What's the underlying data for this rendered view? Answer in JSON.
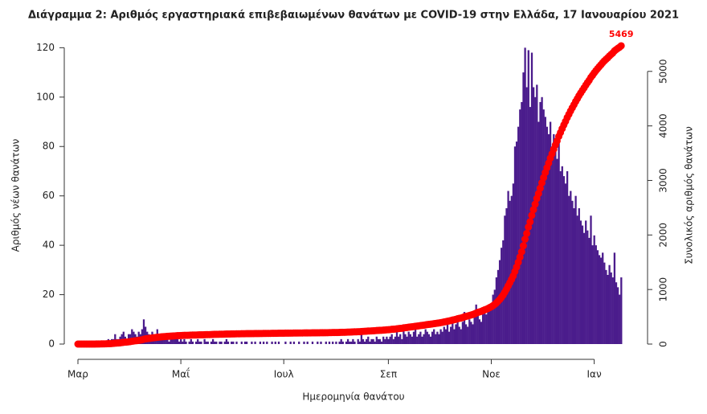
{
  "chart_data": {
    "type": "bar",
    "title": "Διάγραμμα 2: Αριθμός εργαστηριακά επιβεβαιωμένων θανάτων με COVID-19 στην Ελλάδα, 17 Ιανουαρίου 2021",
    "x_label": "Ημερομηνία θανάτου",
    "y_label": "Αριθμός νέων θανάτων",
    "y2_label": "Συνολικός αριθμός θανάτων",
    "categories": [
      "Μαρ",
      null,
      null,
      null,
      null,
      null,
      null,
      null,
      null,
      null,
      null,
      null,
      null,
      null,
      null,
      null,
      null,
      null,
      null,
      null,
      null,
      null,
      null,
      null,
      null,
      null,
      null,
      null,
      null,
      null,
      null,
      null,
      null,
      null,
      null,
      null,
      null,
      null,
      null,
      null,
      null,
      null,
      null,
      null,
      null,
      null,
      null,
      null,
      null,
      null,
      null,
      null,
      null,
      null,
      null,
      null,
      null,
      null,
      null,
      null,
      null,
      "Μαΐ",
      null,
      null,
      null,
      null,
      null,
      null,
      null,
      null,
      null,
      null,
      null,
      null,
      null,
      null,
      null,
      null,
      null,
      null,
      null,
      null,
      null,
      null,
      null,
      null,
      null,
      null,
      null,
      null,
      null,
      null,
      null,
      null,
      null,
      null,
      null,
      null,
      null,
      null,
      null,
      null,
      null,
      null,
      null,
      null,
      null,
      null,
      null,
      null,
      null,
      null,
      null,
      null,
      null,
      null,
      null,
      null,
      null,
      null,
      null,
      null,
      "Ιουλ",
      null,
      null,
      null,
      null,
      null,
      null,
      null,
      null,
      null,
      null,
      null,
      null,
      null,
      null,
      null,
      null,
      null,
      null,
      null,
      null,
      null,
      null,
      null,
      null,
      null,
      null,
      null,
      null,
      null,
      null,
      null,
      null,
      null,
      null,
      null,
      null,
      null,
      null,
      null,
      null,
      null,
      null,
      null,
      null,
      null,
      null,
      null,
      null,
      null,
      null,
      null,
      null,
      null,
      null,
      null,
      null,
      null,
      null,
      null,
      null,
      null,
      "Σεπ",
      null,
      null,
      null,
      null,
      null,
      null,
      null,
      null,
      null,
      null,
      null,
      null,
      null,
      null,
      null,
      null,
      null,
      null,
      null,
      null,
      null,
      null,
      null,
      null,
      null,
      null,
      null,
      null,
      null,
      null,
      null,
      null,
      null,
      null,
      null,
      null,
      null,
      null,
      null,
      null,
      null,
      null,
      null,
      null,
      null,
      null,
      null,
      null,
      null,
      null,
      null,
      null,
      null,
      null,
      null,
      null,
      null,
      null,
      null,
      null,
      "Νοε",
      null,
      null,
      null,
      null,
      null,
      null,
      null,
      null,
      null,
      null,
      null,
      null,
      null,
      null,
      null,
      null,
      null,
      null,
      null,
      null,
      null,
      null,
      null,
      null,
      null,
      null,
      null,
      null,
      null,
      null,
      null,
      null,
      null,
      null,
      null,
      null,
      null,
      null,
      null,
      null,
      null,
      null,
      null,
      null,
      null,
      null,
      null,
      null,
      null,
      null,
      null,
      null,
      null,
      null,
      null,
      null,
      null,
      null,
      null,
      null,
      "Ιαν",
      null,
      null,
      null,
      null,
      null,
      null,
      null,
      null,
      null,
      null,
      null,
      null,
      null,
      null,
      null,
      null
    ],
    "series": [
      {
        "color": "#4b1c8c",
        "values": [
          0,
          0,
          0,
          0,
          0,
          0,
          0,
          0,
          0,
          0,
          0,
          1,
          0,
          1,
          1,
          0,
          1,
          1,
          2,
          1,
          2,
          2,
          4,
          2,
          2,
          3,
          4,
          5,
          3,
          2,
          4,
          4,
          6,
          5,
          4,
          3,
          5,
          4,
          6,
          10,
          7,
          5,
          4,
          3,
          5,
          4,
          3,
          6,
          3,
          2,
          4,
          3,
          2,
          3,
          1,
          2,
          3,
          2,
          2,
          2,
          1,
          2,
          1,
          2,
          1,
          0,
          1,
          2,
          1,
          0,
          1,
          2,
          1,
          1,
          0,
          2,
          1,
          1,
          0,
          1,
          2,
          1,
          1,
          0,
          1,
          1,
          0,
          1,
          2,
          1,
          0,
          1,
          1,
          0,
          1,
          0,
          0,
          1,
          0,
          1,
          1,
          0,
          0,
          1,
          0,
          1,
          0,
          0,
          1,
          0,
          1,
          0,
          1,
          0,
          0,
          1,
          0,
          1,
          0,
          1,
          0,
          0,
          0,
          1,
          0,
          0,
          1,
          0,
          1,
          0,
          0,
          1,
          0,
          0,
          1,
          0,
          1,
          0,
          0,
          1,
          0,
          0,
          1,
          0,
          1,
          0,
          0,
          1,
          0,
          1,
          0,
          1,
          0,
          1,
          0,
          1,
          2,
          1,
          0,
          1,
          2,
          1,
          1,
          2,
          1,
          0,
          2,
          1,
          4,
          2,
          1,
          2,
          3,
          1,
          2,
          2,
          1,
          3,
          2,
          2,
          1,
          3,
          2,
          3,
          2,
          3,
          4,
          2,
          3,
          5,
          3,
          4,
          2,
          8,
          4,
          3,
          5,
          4,
          3,
          5,
          6,
          3,
          4,
          5,
          3,
          4,
          6,
          5,
          4,
          3,
          5,
          6,
          4,
          5,
          4,
          6,
          5,
          7,
          6,
          8,
          5,
          7,
          9,
          6,
          8,
          10,
          7,
          6,
          9,
          13,
          8,
          7,
          10,
          9,
          8,
          11,
          16,
          12,
          10,
          9,
          14,
          13,
          12,
          14,
          16,
          16,
          20,
          22,
          27,
          30,
          34,
          39,
          42,
          52,
          55,
          62,
          58,
          60,
          65,
          80,
          82,
          88,
          95,
          98,
          110,
          120,
          104,
          119,
          96,
          118,
          104,
          100,
          105,
          90,
          98,
          100,
          95,
          92,
          88,
          85,
          90,
          80,
          85,
          78,
          75,
          82,
          70,
          72,
          68,
          65,
          70,
          60,
          62,
          58,
          55,
          60,
          52,
          55,
          50,
          48,
          45,
          50,
          46,
          43,
          52,
          40,
          44,
          40,
          38,
          36,
          35,
          37,
          33,
          30,
          28,
          32,
          29,
          27,
          37,
          25,
          23,
          20,
          27
        ]
      },
      {
        "type": "line",
        "axis": "y2",
        "color": "#ff0000",
        "values": [
          0,
          0,
          0,
          0,
          0,
          0,
          0,
          0,
          0,
          0,
          0,
          1,
          1,
          2,
          3,
          3,
          4,
          5,
          7,
          8,
          10,
          12,
          16,
          18,
          20,
          23,
          27,
          32,
          35,
          37,
          41,
          45,
          51,
          56,
          60,
          63,
          68,
          72,
          78,
          88,
          95,
          100,
          104,
          107,
          112,
          116,
          119,
          125,
          128,
          130,
          134,
          137,
          139,
          142,
          143,
          145,
          148,
          150,
          152,
          154,
          155,
          157,
          158,
          160,
          161,
          161,
          162,
          164,
          165,
          165,
          166,
          168,
          169,
          170,
          170,
          172,
          173,
          174,
          174,
          175,
          177,
          178,
          179,
          179,
          180,
          181,
          181,
          182,
          184,
          185,
          185,
          186,
          187,
          187,
          188,
          188,
          188,
          189,
          189,
          190,
          191,
          191,
          191,
          192,
          192,
          193,
          193,
          193,
          194,
          194,
          195,
          195,
          196,
          196,
          196,
          197,
          197,
          198,
          198,
          199,
          199,
          199,
          199,
          200,
          200,
          200,
          201,
          201,
          202,
          202,
          202,
          203,
          203,
          203,
          204,
          204,
          205,
          205,
          205,
          206,
          206,
          206,
          207,
          207,
          208,
          208,
          208,
          209,
          209,
          210,
          210,
          211,
          211,
          212,
          212,
          213,
          215,
          216,
          216,
          217,
          219,
          220,
          221,
          223,
          224,
          224,
          226,
          227,
          231,
          233,
          234,
          236,
          239,
          240,
          242,
          244,
          245,
          248,
          250,
          252,
          253,
          256,
          258,
          261,
          263,
          266,
          270,
          272,
          275,
          280,
          283,
          287,
          289,
          297,
          301,
          304,
          309,
          313,
          316,
          321,
          327,
          330,
          334,
          339,
          342,
          346,
          352,
          357,
          361,
          364,
          369,
          374,
          378,
          383,
          387,
          393,
          398,
          405,
          411,
          419,
          424,
          431,
          440,
          446,
          454,
          464,
          471,
          477,
          486,
          499,
          507,
          514,
          524,
          533,
          541,
          552,
          568,
          580,
          590,
          599,
          613,
          626,
          638,
          652,
          668,
          684,
          704,
          726,
          753,
          783,
          817,
          856,
          898,
          950,
          1005,
          1067,
          1125,
          1185,
          1250,
          1330,
          1412,
          1500,
          1595,
          1693,
          1803,
          1923,
          2027,
          2146,
          2242,
          2360,
          2464,
          2564,
          2669,
          2759,
          2857,
          2957,
          3052,
          3144,
          3232,
          3317,
          3407,
          3487,
          3572,
          3650,
          3725,
          3807,
          3877,
          3949,
          4017,
          4082,
          4152,
          4212,
          4274,
          4332,
          4387,
          4447,
          4499,
          4554,
          4604,
          4652,
          4697,
          4747,
          4793,
          4836,
          4888,
          4928,
          4972,
          5012,
          5050,
          5086,
          5121,
          5158,
          5191,
          5221,
          5249,
          5281,
          5310,
          5337,
          5374,
          5399,
          5422,
          5442,
          5469
        ]
      }
    ],
    "ylim": [
      0,
      125
    ],
    "yticks": [
      0,
      20,
      40,
      60,
      80,
      100,
      120
    ],
    "y2lim": [
      0,
      5660
    ],
    "y2ticks": [
      0,
      1000,
      2000,
      3000,
      4000,
      5000
    ]
  }
}
